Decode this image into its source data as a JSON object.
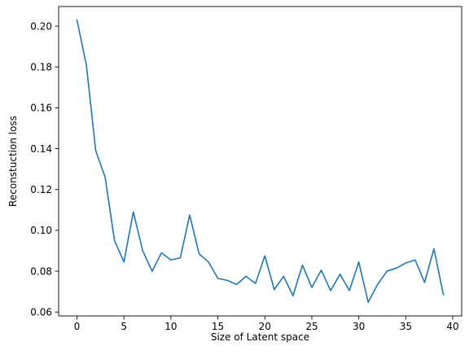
{
  "chart_data": {
    "type": "line",
    "title": "",
    "xlabel": "Size of Latent space",
    "ylabel": "Reconstuction loss",
    "xlim": [
      -1.95,
      40.95
    ],
    "ylim": [
      0.0581,
      0.2096
    ],
    "x_ticks": [
      0,
      5,
      10,
      15,
      20,
      25,
      30,
      35,
      40
    ],
    "y_ticks": [
      0.06,
      0.08,
      0.1,
      0.12,
      0.14,
      0.16,
      0.18,
      0.2
    ],
    "grid": false,
    "legend": "none",
    "colors": {
      "line": "#1f77b4",
      "axis": "#000000"
    },
    "series": [
      {
        "x": [
          0,
          1,
          2,
          3,
          4,
          5,
          6,
          7,
          8,
          9,
          10,
          11,
          12,
          13,
          14,
          15,
          16,
          17,
          18,
          19,
          20,
          21,
          22,
          23,
          24,
          25,
          26,
          27,
          28,
          29,
          30,
          31,
          32,
          33,
          34,
          35,
          36,
          37,
          38,
          39
        ],
        "values": [
          0.203,
          0.181,
          0.139,
          0.126,
          0.095,
          0.0845,
          0.109,
          0.09,
          0.08,
          0.089,
          0.0855,
          0.0865,
          0.1075,
          0.0885,
          0.0845,
          0.0765,
          0.0755,
          0.0735,
          0.0775,
          0.074,
          0.0875,
          0.071,
          0.0775,
          0.068,
          0.083,
          0.072,
          0.0805,
          0.0705,
          0.0785,
          0.0705,
          0.0845,
          0.0648,
          0.0735,
          0.08,
          0.0815,
          0.084,
          0.0855,
          0.0745,
          0.091,
          0.0685
        ]
      }
    ]
  }
}
